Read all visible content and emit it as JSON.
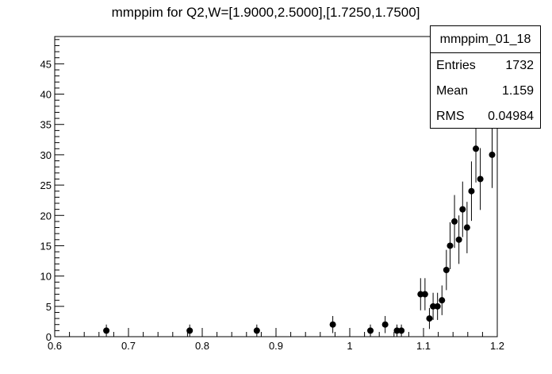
{
  "chart_data": {
    "type": "scatter",
    "title": "mmppim for Q2,W=[1.9000,2.5000],[1.7250,1.7500]",
    "xlabel": "",
    "ylabel": "",
    "xlim": [
      0.6,
      1.2
    ],
    "ylim": [
      0,
      49.5
    ],
    "x_ticks": [
      "0.6",
      "0.7",
      "0.8",
      "0.9",
      "1",
      "1.1",
      "1.2"
    ],
    "y_ticks": [
      "0",
      "5",
      "10",
      "15",
      "20",
      "25",
      "30",
      "35",
      "40",
      "45"
    ],
    "grid": false,
    "points": [
      {
        "x": 0.67,
        "y": 1,
        "err": 1.0
      },
      {
        "x": 0.783,
        "y": 1,
        "err": 1.0
      },
      {
        "x": 0.874,
        "y": 1,
        "err": 1.0
      },
      {
        "x": 0.977,
        "y": 2,
        "err": 1.41
      },
      {
        "x": 1.028,
        "y": 1,
        "err": 1.0
      },
      {
        "x": 1.048,
        "y": 2,
        "err": 1.41
      },
      {
        "x": 1.064,
        "y": 1,
        "err": 1.0
      },
      {
        "x": 1.07,
        "y": 1,
        "err": 1.0
      },
      {
        "x": 1.096,
        "y": 7,
        "err": 2.65
      },
      {
        "x": 1.102,
        "y": 7,
        "err": 2.65
      },
      {
        "x": 1.108,
        "y": 3,
        "err": 1.73
      },
      {
        "x": 1.113,
        "y": 5,
        "err": 2.24
      },
      {
        "x": 1.119,
        "y": 5,
        "err": 2.24
      },
      {
        "x": 1.125,
        "y": 6,
        "err": 2.45
      },
      {
        "x": 1.131,
        "y": 11,
        "err": 3.32
      },
      {
        "x": 1.136,
        "y": 15,
        "err": 3.87
      },
      {
        "x": 1.142,
        "y": 19,
        "err": 4.36
      },
      {
        "x": 1.148,
        "y": 16,
        "err": 4.0
      },
      {
        "x": 1.153,
        "y": 21,
        "err": 4.58
      },
      {
        "x": 1.159,
        "y": 18,
        "err": 4.24
      },
      {
        "x": 1.165,
        "y": 24,
        "err": 4.9
      },
      {
        "x": 1.171,
        "y": 31,
        "err": 5.57
      },
      {
        "x": 1.177,
        "y": 26,
        "err": 5.1
      },
      {
        "x": 1.193,
        "y": 30,
        "err": 5.48
      }
    ]
  },
  "stats_box": {
    "name": "mmppim_01_18",
    "entries_label": "Entries",
    "entries_value": "1732",
    "mean_label": "Mean",
    "mean_value": "1.159",
    "rms_label": "RMS",
    "rms_value": "0.04984"
  }
}
